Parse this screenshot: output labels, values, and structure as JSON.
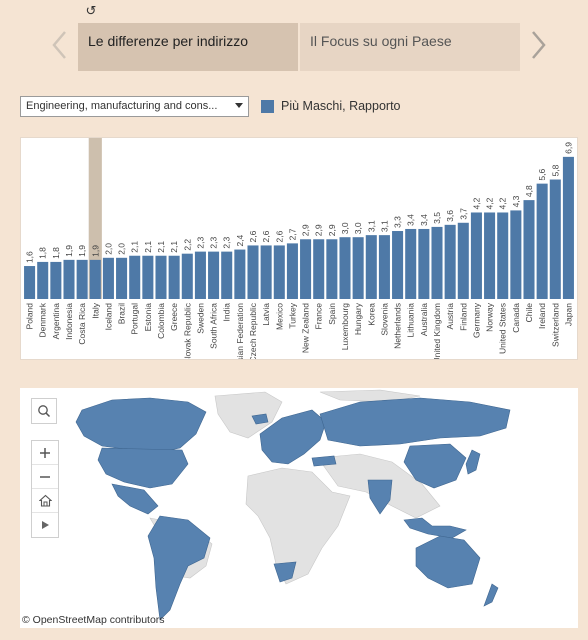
{
  "reset_glyph": "↺",
  "icons": {
    "reset": "reset-icon",
    "prev": "chevron-left-icon",
    "next": "chevron-right-icon",
    "search": "search-icon",
    "zoom_in": "plus-icon",
    "zoom_out": "minus-icon",
    "home": "home-icon",
    "more": "play-icon"
  },
  "tabs": [
    {
      "label": "Le differenze per indirizzo",
      "active": true
    },
    {
      "label": "Il Focus su ogni Paese",
      "active": false
    }
  ],
  "filter": {
    "selected": "Engineering, manufacturing and cons..."
  },
  "legend": {
    "label": "Più Maschi, Rapporto",
    "color": "#4e79a7"
  },
  "colors": {
    "bar": "#4e79a7",
    "highlight": "#cdbfad",
    "land": "#e0e0e0"
  },
  "chart_data": {
    "type": "bar",
    "highlighted": "Italy",
    "ylim": [
      0,
      7.5
    ],
    "categories": [
      "Poland",
      "Denmark",
      "Argentina",
      "Indonesia",
      "Costa Rica",
      "Italy",
      "Iceland",
      "Brazil",
      "Portugal",
      "Estonia",
      "Colombia",
      "Greece",
      "Slovak Republic",
      "Sweden",
      "South Africa",
      "India",
      "Russian Federation",
      "Czech Republic",
      "Latvia",
      "Mexico",
      "Turkey",
      "New Zealand",
      "France",
      "Spain",
      "Luxembourg",
      "Hungary",
      "Korea",
      "Slovenia",
      "Netherlands",
      "Lithuania",
      "Australia",
      "United Kingdom",
      "Austria",
      "Finland",
      "Germany",
      "Norway",
      "United States",
      "Canada",
      "Chile",
      "Ireland",
      "Switzerland",
      "Japan"
    ],
    "values": [
      1.6,
      1.8,
      1.8,
      1.9,
      1.9,
      1.9,
      2.0,
      2.0,
      2.1,
      2.1,
      2.1,
      2.1,
      2.2,
      2.3,
      2.3,
      2.3,
      2.4,
      2.6,
      2.6,
      2.6,
      2.7,
      2.9,
      2.9,
      2.9,
      3.0,
      3.0,
      3.1,
      3.1,
      3.3,
      3.4,
      3.4,
      3.5,
      3.6,
      3.7,
      4.2,
      4.2,
      4.2,
      4.3,
      4.8,
      5.6,
      5.8,
      6.9
    ],
    "labels": [
      "1,6",
      "1,8",
      "1,8",
      "1,9",
      "1,9",
      "1,9",
      "2,0",
      "2,0",
      "2,1",
      "2,1",
      "2,1",
      "2,1",
      "2,2",
      "2,3",
      "2,3",
      "2,3",
      "2,4",
      "2,6",
      "2,6",
      "2,6",
      "2,7",
      "2,9",
      "2,9",
      "2,9",
      "3,0",
      "3,0",
      "3,1",
      "3,1",
      "3,3",
      "3,4",
      "3,4",
      "3,5",
      "3,6",
      "3,7",
      "4,2",
      "4,2",
      "4,2",
      "4,3",
      "4,8",
      "5,6",
      "5,8",
      "6,9"
    ]
  },
  "map": {
    "attribution": "© OpenStreetMap contributors"
  }
}
